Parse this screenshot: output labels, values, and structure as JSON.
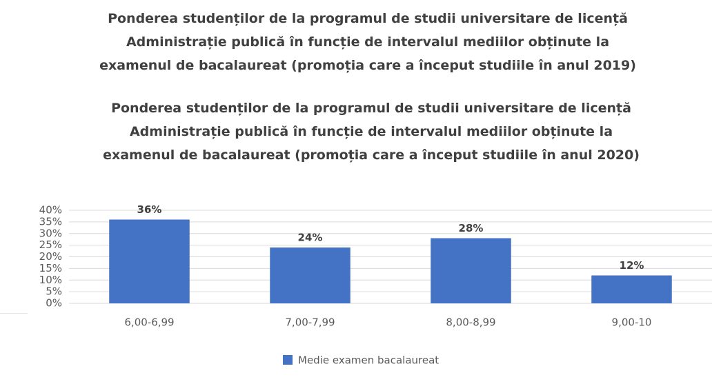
{
  "chart_data": [
    {
      "type": "bar",
      "title": "Ponderea studenților de la programul de studii universitare de licență Administrație publică în funcție de intervalul mediilor obținute la examenul de bacalaureat (promoția care a început studiile în anul 2019)"
    },
    {
      "type": "bar",
      "title": "Ponderea studenților de la programul de studii universitare de licență Administrație publică în funcție de intervalul mediilor obținute la examenul de bacalaureat (promoția care a început studiile în anul 2020)",
      "categories": [
        "6,00-6,99",
        "7,00-7,99",
        "8,00-8,99",
        "9,00-10"
      ],
      "series": [
        {
          "name": "Medie examen bacalaureat",
          "color": "#4472c4",
          "values": [
            36,
            24,
            28,
            12
          ],
          "value_labels": [
            "36%",
            "24%",
            "28%",
            "12%"
          ]
        }
      ],
      "ylim": [
        0,
        40
      ],
      "yticks": [
        {
          "value": 0,
          "label": "0%"
        },
        {
          "value": 5,
          "label": "5%"
        },
        {
          "value": 10,
          "label": "10%"
        },
        {
          "value": 15,
          "label": "15%"
        },
        {
          "value": 20,
          "label": "20%"
        },
        {
          "value": 25,
          "label": "25%"
        },
        {
          "value": 30,
          "label": "30%"
        },
        {
          "value": 35,
          "label": "35%"
        },
        {
          "value": 40,
          "label": "40%"
        }
      ],
      "grid": true,
      "legend": "bottom"
    }
  ]
}
